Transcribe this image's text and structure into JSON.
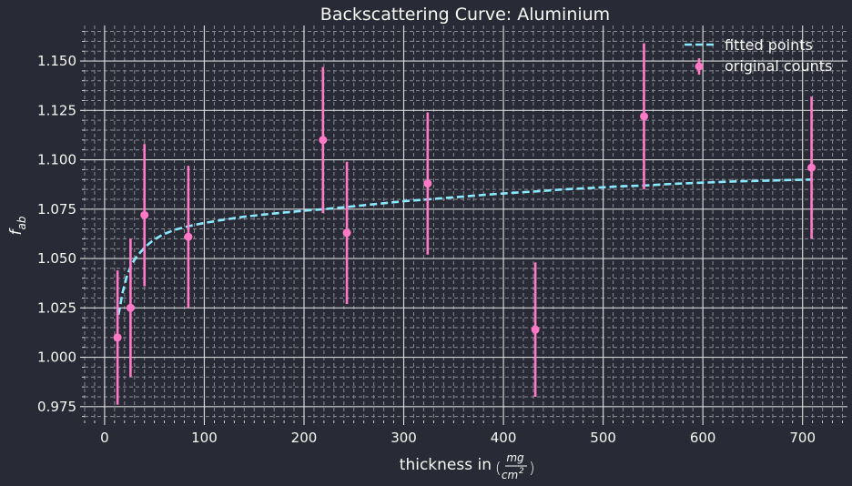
{
  "chart_data": {
    "type": "scatter",
    "title": "Backscattering Curve: Aluminium",
    "xlabel": {
      "prefix": "thickness in",
      "numerator": "mg",
      "denominator": "cm",
      "denominator_exponent": "2"
    },
    "ylabel": {
      "main": "f",
      "subscript": "ab"
    },
    "xlim": [
      -20,
      745
    ],
    "ylim": [
      0.968,
      1.168
    ],
    "xticks": [
      0,
      100,
      200,
      300,
      400,
      500,
      600,
      700
    ],
    "yticks": [
      0.975,
      1.0,
      1.025,
      1.05,
      1.075,
      1.1,
      1.125,
      1.15
    ],
    "x_minor_step": 10,
    "y_minor_step": 0.005,
    "grid": true,
    "legend_position": "top-right",
    "series": [
      {
        "name": "fitted points",
        "kind": "line",
        "style": "dashed",
        "color": "#8be9fd",
        "x": [
          14,
          18,
          22,
          27,
          33,
          40,
          48,
          58,
          70,
          85,
          100,
          120,
          140,
          160,
          180,
          200,
          220,
          245,
          270,
          300,
          325,
          350,
          380,
          410,
          433,
          460,
          490,
          520,
          542,
          570,
          600,
          630,
          660,
          690,
          710
        ],
        "y": [
          1.0215,
          1.0326,
          1.0405,
          1.0472,
          1.0515,
          1.0555,
          1.059,
          1.062,
          1.0645,
          1.0665,
          1.068,
          1.0697,
          1.0712,
          1.0723,
          1.0733,
          1.0742,
          1.075,
          1.0762,
          1.0775,
          1.079,
          1.08,
          1.081,
          1.0822,
          1.0833,
          1.084,
          1.085,
          1.0858,
          1.0866,
          1.087,
          1.0878,
          1.0884,
          1.089,
          1.0894,
          1.0898,
          1.09
        ]
      },
      {
        "name": "original counts",
        "kind": "errorbar",
        "color": "#ff79c6",
        "x": [
          13,
          26,
          40,
          84,
          219,
          243,
          324,
          432,
          541,
          709
        ],
        "y": [
          1.01,
          1.025,
          1.072,
          1.061,
          1.11,
          1.063,
          1.088,
          1.014,
          1.122,
          1.096
        ],
        "yerr": [
          0.034,
          0.035,
          0.036,
          0.036,
          0.037,
          0.036,
          0.036,
          0.034,
          0.037,
          0.036
        ]
      }
    ]
  },
  "colors": {
    "background": "#282a36",
    "text": "#f8f8f2",
    "grid_major": "#d6d6d6",
    "grid_minor": "#8a8c96"
  }
}
